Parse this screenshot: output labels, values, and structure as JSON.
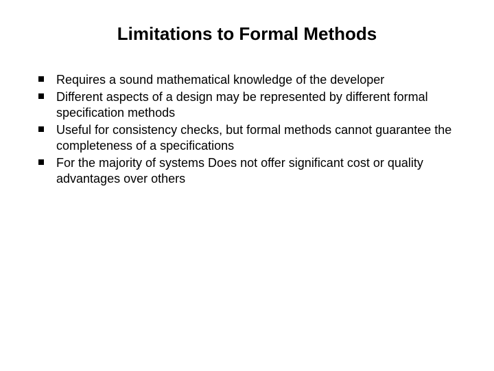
{
  "title": "Limitations to Formal Methods",
  "bullets": [
    "Requires a sound mathematical knowledge of the developer",
    "Different aspects of a design may be represented by different formal specification methods",
    "Useful for consistency checks, but formal methods cannot guarantee the completeness of a specifications",
    "For the majority of systems Does not offer significant cost or quality advantages over others"
  ],
  "style": {
    "background_color": "#ffffff",
    "text_color": "#000000",
    "title_fontsize_pt": 20,
    "body_fontsize_pt": 14,
    "bullet_shape": "square",
    "bullet_color": "#000000",
    "font_family": "Arial"
  }
}
